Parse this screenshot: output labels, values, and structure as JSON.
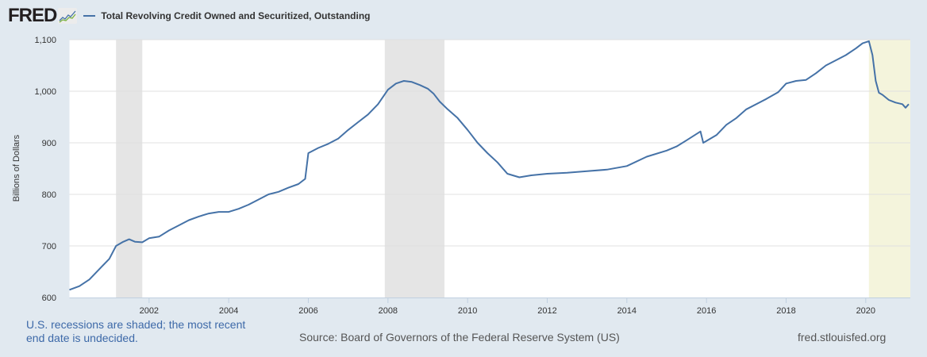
{
  "header": {
    "logo_text": "FRED",
    "logo_icon": "chart-line-icon",
    "series_title": "Total Revolving Credit Owned and Securitized, Outstanding",
    "series_color": "#4572a7"
  },
  "footer": {
    "recession_note": "U.S. recessions are shaded; the most recent end date is undecided.",
    "source": "Source: Board of Governors of the Federal Reserve System (US)",
    "site": "fred.stlouisfed.org"
  },
  "chart_data": {
    "type": "line",
    "title": "Total Revolving Credit Owned and Securitized, Outstanding",
    "xlabel": "",
    "ylabel": "Billions of Dollars",
    "xlim": [
      2000.0,
      2021.12
    ],
    "ylim": [
      600,
      1100
    ],
    "grid": true,
    "legend": "top-left",
    "y_ticks": [
      600,
      700,
      800,
      900,
      1000,
      1100
    ],
    "y_tick_labels": [
      "600",
      "700",
      "800",
      "900",
      "1,000",
      "1,100"
    ],
    "x_ticks": [
      2002,
      2004,
      2006,
      2008,
      2010,
      2012,
      2014,
      2016,
      2018,
      2020
    ],
    "x_tick_labels": [
      "2002",
      "2004",
      "2006",
      "2008",
      "2010",
      "2012",
      "2014",
      "2016",
      "2018",
      "2020"
    ],
    "recessions": [
      {
        "start": 2001.17,
        "end": 2001.83,
        "undecided": false
      },
      {
        "start": 2007.92,
        "end": 2009.42,
        "undecided": false
      },
      {
        "start": 2020.08,
        "end": 2021.12,
        "undecided": true
      }
    ],
    "colors": {
      "line": "#4572a7",
      "recession": "#e5e5e5",
      "recession_undecided": "#f4f4dc",
      "grid": "#e0e0e0"
    },
    "series": [
      {
        "name": "Total Revolving Credit Owned and Securitized, Outstanding",
        "x": [
          2000.0,
          2000.25,
          2000.5,
          2000.75,
          2001.0,
          2001.17,
          2001.35,
          2001.5,
          2001.65,
          2001.83,
          2002.0,
          2002.25,
          2002.5,
          2002.75,
          2003.0,
          2003.25,
          2003.5,
          2003.75,
          2004.0,
          2004.25,
          2004.5,
          2004.75,
          2005.0,
          2005.25,
          2005.5,
          2005.75,
          2005.92,
          2006.0,
          2006.25,
          2006.5,
          2006.75,
          2007.0,
          2007.25,
          2007.5,
          2007.75,
          2008.0,
          2008.2,
          2008.4,
          2008.6,
          2008.8,
          2009.0,
          2009.15,
          2009.3,
          2009.5,
          2009.75,
          2010.0,
          2010.25,
          2010.5,
          2010.75,
          2011.0,
          2011.3,
          2011.6,
          2012.0,
          2012.5,
          2013.0,
          2013.5,
          2014.0,
          2014.5,
          2015.0,
          2015.25,
          2015.5,
          2015.85,
          2015.92,
          2016.25,
          2016.5,
          2016.75,
          2017.0,
          2017.5,
          2017.8,
          2018.0,
          2018.25,
          2018.5,
          2018.75,
          2019.0,
          2019.25,
          2019.5,
          2019.75,
          2019.92,
          2020.08,
          2020.17,
          2020.25,
          2020.33,
          2020.42,
          2020.58,
          2020.75,
          2020.92,
          2021.0,
          2021.08
        ],
        "values": [
          615,
          622,
          635,
          655,
          675,
          700,
          708,
          713,
          708,
          707,
          715,
          718,
          730,
          740,
          750,
          757,
          763,
          766,
          766,
          772,
          780,
          790,
          800,
          805,
          813,
          820,
          830,
          880,
          890,
          898,
          908,
          925,
          940,
          955,
          975,
          1003,
          1015,
          1020,
          1018,
          1012,
          1005,
          995,
          980,
          965,
          948,
          925,
          900,
          880,
          862,
          840,
          833,
          837,
          840,
          842,
          845,
          848,
          855,
          873,
          885,
          893,
          905,
          922,
          900,
          915,
          935,
          948,
          965,
          985,
          998,
          1015,
          1020,
          1022,
          1035,
          1050,
          1060,
          1070,
          1083,
          1093,
          1097,
          1070,
          1020,
          997,
          993,
          983,
          978,
          975,
          968,
          975
        ]
      }
    ]
  }
}
